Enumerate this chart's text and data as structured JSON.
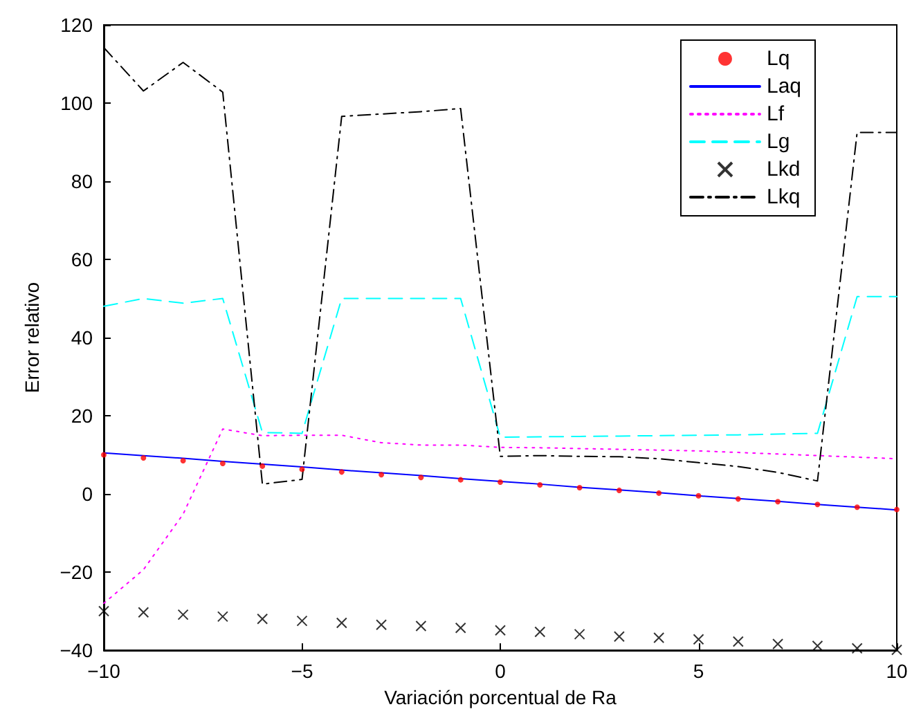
{
  "chart_data": {
    "type": "line",
    "xlabel": "Variación porcentual de Ra",
    "ylabel": "Error relativo",
    "x": [
      -10,
      -9,
      -8,
      -7,
      -6,
      -5,
      -4,
      -3,
      -2,
      -1,
      0,
      1,
      2,
      3,
      4,
      5,
      6,
      7,
      8,
      9,
      10
    ],
    "xlim": [
      -10,
      10
    ],
    "xticks": [
      -10,
      -5,
      0,
      5,
      10
    ],
    "ylim": [
      -40,
      120
    ],
    "yticks": [
      -40,
      -20,
      0,
      20,
      40,
      60,
      80,
      100,
      120
    ],
    "grid": false,
    "legend": "top right",
    "series": [
      {
        "name": "Lq",
        "type": "scatter",
        "marker": "circle",
        "color": "#ff0000",
        "values": [
          10,
          9.2,
          8.5,
          7.8,
          7.1,
          6.3,
          5.6,
          4.9,
          4.2,
          3.6,
          3.0,
          2.3,
          1.6,
          0.9,
          0.2,
          -0.5,
          -1.3,
          -2.0,
          -2.7,
          -3.4,
          -4.0
        ]
      },
      {
        "name": "Laq",
        "line_style": "solid",
        "color": "#0000ff",
        "values": [
          10.5,
          9.8,
          9.1,
          8.3,
          7.6,
          6.9,
          6.1,
          5.4,
          4.7,
          3.9,
          3.2,
          2.5,
          1.7,
          1.0,
          0.3,
          -0.5,
          -1.2,
          -1.9,
          -2.7,
          -3.4,
          -4.1
        ]
      },
      {
        "name": "Lf",
        "line_style": "dotted",
        "color": "#ff00ff",
        "values": [
          -28,
          -19.4,
          -5.2,
          16.6,
          14.9,
          15,
          15,
          13.1,
          12.5,
          12.5,
          11.9,
          11.8,
          11.6,
          11.4,
          11.2,
          11,
          10.6,
          10.2,
          9.8,
          9.4,
          9.0
        ]
      },
      {
        "name": "Lg",
        "line_style": "dashed",
        "color": "#00ffff",
        "values": [
          48,
          50,
          48.8,
          50,
          15.7,
          15.5,
          50,
          50,
          50,
          50,
          14.5,
          14.6,
          14.7,
          14.8,
          14.9,
          15,
          15.1,
          15.3,
          15.5,
          50.5,
          50.5
        ]
      },
      {
        "name": "Lkd",
        "type": "scatter",
        "marker": "cross",
        "color": "#000000",
        "values": [
          -30,
          -30.3,
          -30.9,
          -31.4,
          -32,
          -32.5,
          -33,
          -33.5,
          -33.8,
          -34.3,
          -34.9,
          -35.3,
          -35.9,
          -36.5,
          -36.8,
          -37.2,
          -37.8,
          -38.4,
          -38.9,
          -39.5,
          -39.9
        ]
      },
      {
        "name": "Lkq",
        "line_style": "dashdot",
        "color": "#000000",
        "values": [
          114.2,
          103.1,
          110.4,
          102.8,
          2.5,
          3.7,
          96.6,
          97.2,
          97.8,
          98.6,
          9.6,
          9.8,
          9.6,
          9.5,
          9,
          8,
          7,
          5.5,
          3.3,
          92.5,
          92.5
        ]
      }
    ]
  }
}
